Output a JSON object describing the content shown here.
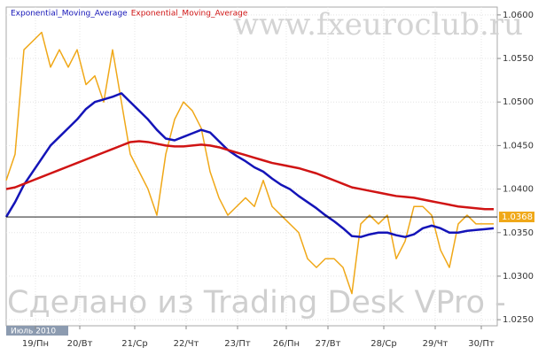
{
  "chart_data": {
    "type": "line",
    "watermarks": [
      "www.fxeuroclub.ru",
      "Сделано из Trading Desk VPro -"
    ],
    "period_label": "Июль 2010",
    "x": [
      0,
      1,
      2,
      3,
      4,
      5,
      6,
      7,
      8,
      9,
      10,
      11,
      12,
      13,
      14,
      15,
      16,
      17,
      18,
      19,
      20,
      21,
      22,
      23,
      24,
      25,
      26,
      27,
      28,
      29,
      30,
      31,
      32,
      33,
      34,
      35,
      36,
      37,
      38,
      39,
      40,
      41,
      42,
      43,
      44,
      45,
      46,
      47,
      48,
      49,
      50,
      51,
      52,
      53,
      54,
      55
    ],
    "series": [
      {
        "color": "#f0a818",
        "values": [
          1.041,
          1.044,
          1.056,
          1.057,
          1.058,
          1.054,
          1.056,
          1.054,
          1.056,
          1.052,
          1.053,
          1.05,
          1.056,
          1.05,
          1.044,
          1.042,
          1.04,
          1.037,
          1.044,
          1.048,
          1.05,
          1.049,
          1.047,
          1.042,
          1.039,
          1.037,
          1.038,
          1.039,
          1.038,
          1.041,
          1.038,
          1.037,
          1.036,
          1.035,
          1.032,
          1.031,
          1.032,
          1.032,
          1.031,
          1.028,
          1.036,
          1.037,
          1.036,
          1.037,
          1.032,
          1.034,
          1.038,
          1.038,
          1.037,
          1.033,
          1.031,
          1.036,
          1.037,
          1.036,
          1.036,
          1.036
        ]
      },
      {
        "name": "Exponential_Moving_Average",
        "color": "#1414b8",
        "values": [
          1.0368,
          1.0385,
          1.0405,
          1.042,
          1.0435,
          1.045,
          1.046,
          1.047,
          1.048,
          1.0492,
          1.05,
          1.0503,
          1.0506,
          1.051,
          1.05,
          1.049,
          1.048,
          1.0468,
          1.0458,
          1.0456,
          1.046,
          1.0464,
          1.0468,
          1.0465,
          1.0455,
          1.0445,
          1.0438,
          1.0432,
          1.0425,
          1.042,
          1.0412,
          1.0405,
          1.04,
          1.0392,
          1.0385,
          1.0378,
          1.037,
          1.0363,
          1.0355,
          1.0346,
          1.0345,
          1.0348,
          1.035,
          1.035,
          1.0347,
          1.0345,
          1.0348,
          1.0355,
          1.0358,
          1.0355,
          1.035,
          1.035,
          1.0352,
          1.0353,
          1.0354,
          1.0355
        ]
      },
      {
        "name": "Exponential_Moving_Average",
        "color": "#d01414",
        "values": [
          1.04,
          1.0402,
          1.0406,
          1.041,
          1.0414,
          1.0418,
          1.0422,
          1.0426,
          1.043,
          1.0434,
          1.0438,
          1.0442,
          1.0446,
          1.045,
          1.0454,
          1.0455,
          1.0454,
          1.0452,
          1.045,
          1.0449,
          1.0449,
          1.045,
          1.0451,
          1.045,
          1.0448,
          1.0445,
          1.0442,
          1.0439,
          1.0436,
          1.0433,
          1.043,
          1.0428,
          1.0426,
          1.0424,
          1.0421,
          1.0418,
          1.0414,
          1.041,
          1.0406,
          1.0402,
          1.04,
          1.0398,
          1.0396,
          1.0394,
          1.0392,
          1.0391,
          1.039,
          1.0388,
          1.0386,
          1.0384,
          1.0382,
          1.038,
          1.0379,
          1.0378,
          1.0377,
          1.0377
        ]
      }
    ],
    "last_value": 1.0368,
    "xlim": [
      0,
      55.4
    ],
    "ylim": [
      1.0243,
      1.0609
    ],
    "xticks": [
      {
        "value": 3.3,
        "label": "19/Пн"
      },
      {
        "value": 8.3,
        "label": "20/Вт"
      },
      {
        "value": 14.5,
        "label": "21/Ср"
      },
      {
        "value": 20.3,
        "label": "22/Чт"
      },
      {
        "value": 26.1,
        "label": "23/Пт"
      },
      {
        "value": 31.6,
        "label": "26/Пн"
      },
      {
        "value": 36.3,
        "label": "27/Вт"
      },
      {
        "value": 42.6,
        "label": "28/Ср"
      },
      {
        "value": 48.4,
        "label": "29/Чт"
      },
      {
        "value": 53.6,
        "label": "30/Пт"
      }
    ],
    "yticks": [
      {
        "value": 1.06,
        "label": "1.0600"
      },
      {
        "value": 1.055,
        "label": "1.0550"
      },
      {
        "value": 1.05,
        "label": "1.0500"
      },
      {
        "value": 1.045,
        "label": "1.0450"
      },
      {
        "value": 1.04,
        "label": "1.0400"
      },
      {
        "value": 1.035,
        "label": "1.0350"
      },
      {
        "value": 1.03,
        "label": "1.0300"
      },
      {
        "value": 1.025,
        "label": "1.0250"
      }
    ],
    "grid": true
  }
}
